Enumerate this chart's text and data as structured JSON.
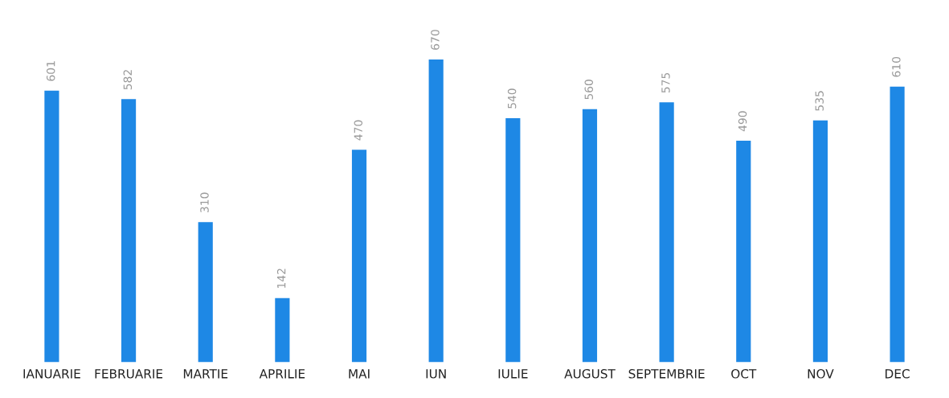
{
  "chart_data": {
    "type": "bar",
    "categories": [
      "IANUARIE",
      "FEBRUARIE",
      "MARTIE",
      "APRILIE",
      "MAI",
      "IUN",
      "IULIE",
      "AUGUST",
      "SEPTEMBRIE",
      "OCT",
      "NOV",
      "DEC"
    ],
    "values": [
      601,
      582,
      310,
      142,
      470,
      670,
      540,
      560,
      575,
      490,
      535,
      610
    ],
    "color": "#1e88e5",
    "data_labels": true,
    "grid": false
  }
}
